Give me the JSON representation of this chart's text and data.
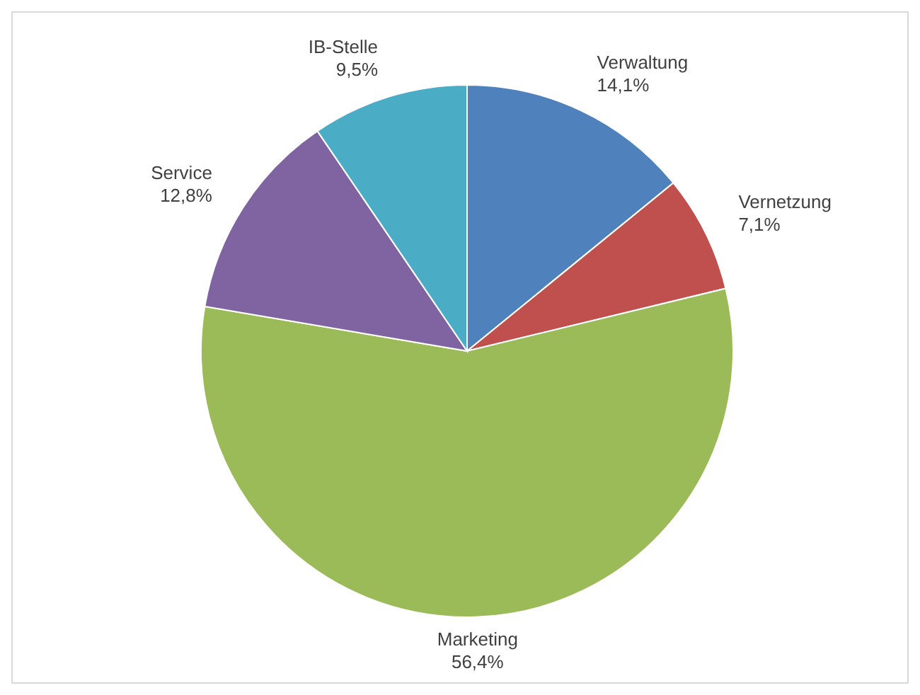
{
  "chart_data": {
    "type": "pie",
    "categories": [
      "Verwaltung",
      "Vernetzung",
      "Marketing",
      "Service",
      "IB-Stelle"
    ],
    "values": [
      14.1,
      7.1,
      56.4,
      12.8,
      9.5
    ],
    "value_labels": [
      "14,1%",
      "7,1%",
      "56,4%",
      "12,8%",
      "9,5%"
    ],
    "colors": [
      "#4f81bd",
      "#c0504d",
      "#9bbb59",
      "#8064a2",
      "#4bacc6"
    ]
  }
}
